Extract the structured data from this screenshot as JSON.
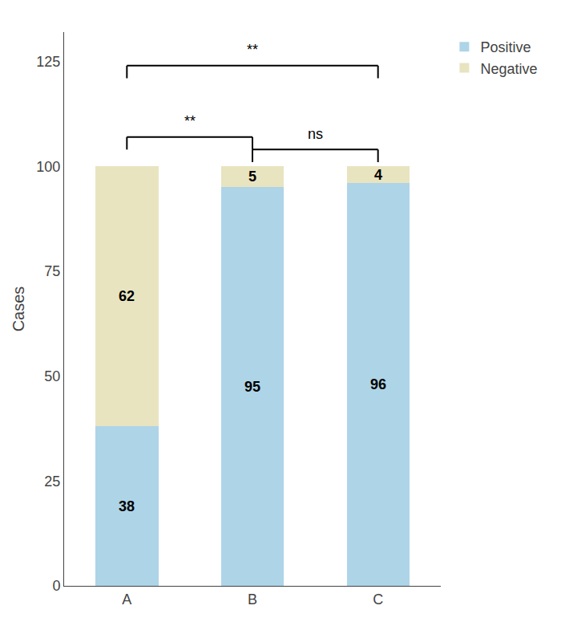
{
  "chart_data": {
    "type": "bar",
    "stacked": true,
    "categories": [
      "A",
      "B",
      "C"
    ],
    "series": [
      {
        "name": "Positive",
        "color": "#aed4e8",
        "values": [
          38,
          95,
          96
        ]
      },
      {
        "name": "Negative",
        "color": "#e8e4c0",
        "values": [
          62,
          5,
          4
        ]
      }
    ],
    "ylabel": "Cases",
    "ylim": [
      0,
      132
    ],
    "yticks": [
      0,
      25,
      50,
      75,
      100,
      125
    ],
    "grid": false,
    "legend": "right",
    "data_labels": true,
    "brackets": [
      {
        "from": "A",
        "to": "B",
        "y": 107,
        "drop": 3,
        "label": "**",
        "label_y": 108.5
      },
      {
        "from": "A",
        "to": "C",
        "y": 124,
        "drop": 3,
        "label": "**",
        "label_y": 125.5
      },
      {
        "from": "B",
        "to": "C",
        "y": 104,
        "drop": 3,
        "label": "ns",
        "label_y": 105.5
      }
    ]
  }
}
